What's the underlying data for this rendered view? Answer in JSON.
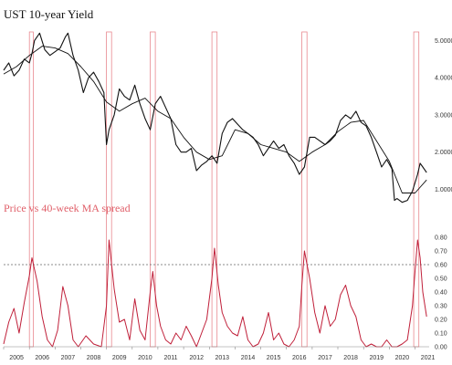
{
  "chart_data": [
    {
      "type": "line",
      "title": "UST 10-year Yield",
      "ylim": [
        0.2,
        5.6
      ],
      "yticks": [
        "1.0000",
        "2.0000",
        "3.0000",
        "4.0000",
        "5.0000"
      ],
      "ytick_values": [
        1,
        2,
        3,
        4,
        5
      ],
      "x_tick_labels": [
        "2005",
        "2006",
        "2007",
        "2008",
        "2009",
        "2010",
        "2011",
        "2012",
        "2013",
        "2014",
        "2015",
        "2016",
        "2017",
        "2018",
        "2019",
        "2020",
        "2021"
      ],
      "series": [
        {
          "color": "#111111",
          "x": [
            2005.0,
            2005.2,
            2005.4,
            2005.6,
            2005.8,
            2006.0,
            2006.1,
            2006.2,
            2006.4,
            2006.6,
            2006.8,
            2007.0,
            2007.2,
            2007.4,
            2007.5,
            2007.7,
            2007.9,
            2008.1,
            2008.3,
            2008.5,
            2008.7,
            2008.9,
            2009.0,
            2009.1,
            2009.3,
            2009.5,
            2009.7,
            2009.9,
            2010.1,
            2010.3,
            2010.5,
            2010.7,
            2010.9,
            2011.0,
            2011.1,
            2011.3,
            2011.5,
            2011.7,
            2011.9,
            2012.1,
            2012.3,
            2012.5,
            2012.7,
            2012.9,
            2013.1,
            2013.3,
            2013.5,
            2013.7,
            2013.9,
            2014.1,
            2014.3,
            2014.5,
            2014.7,
            2014.9,
            2015.1,
            2015.3,
            2015.5,
            2015.7,
            2015.9,
            2016.1,
            2016.3,
            2016.5,
            2016.7,
            2016.9,
            2017.1,
            2017.3,
            2017.5,
            2017.7,
            2017.9,
            2018.1,
            2018.3,
            2018.5,
            2018.7,
            2018.9,
            2019.1,
            2019.3,
            2019.5,
            2019.7,
            2019.9,
            2020.1,
            2020.2,
            2020.3,
            2020.5,
            2020.7,
            2020.9,
            2021.1,
            2021.2,
            2021.3,
            2021.45
          ],
          "values": [
            4.2,
            4.4,
            4.05,
            4.2,
            4.5,
            4.4,
            4.65,
            5.0,
            5.2,
            4.75,
            4.6,
            4.7,
            4.8,
            5.1,
            5.2,
            4.6,
            4.2,
            3.6,
            4.0,
            4.15,
            3.9,
            3.6,
            2.2,
            2.6,
            3.0,
            3.7,
            3.5,
            3.4,
            3.8,
            3.3,
            2.9,
            2.6,
            3.3,
            3.4,
            3.5,
            3.2,
            2.9,
            2.2,
            2.0,
            2.0,
            2.1,
            1.5,
            1.65,
            1.75,
            1.9,
            1.7,
            2.5,
            2.8,
            2.9,
            2.75,
            2.6,
            2.5,
            2.4,
            2.2,
            1.9,
            2.1,
            2.3,
            2.1,
            2.2,
            1.9,
            1.7,
            1.4,
            1.6,
            2.4,
            2.4,
            2.3,
            2.2,
            2.3,
            2.45,
            2.85,
            3.0,
            2.9,
            3.1,
            2.8,
            2.7,
            2.4,
            2.0,
            1.6,
            1.8,
            1.55,
            0.7,
            0.75,
            0.65,
            0.7,
            0.95,
            1.4,
            1.7,
            1.6,
            1.45
          ]
        },
        {
          "color": "#111111",
          "x": [
            2005.0,
            2005.5,
            2006.0,
            2006.5,
            2007.0,
            2007.5,
            2008.0,
            2008.5,
            2009.0,
            2009.5,
            2010.0,
            2010.5,
            2011.0,
            2011.5,
            2012.0,
            2012.5,
            2013.0,
            2013.5,
            2014.0,
            2014.5,
            2015.0,
            2015.5,
            2016.0,
            2016.5,
            2017.0,
            2017.5,
            2018.0,
            2018.5,
            2019.0,
            2019.5,
            2020.0,
            2020.5,
            2021.0,
            2021.45
          ],
          "values": [
            4.1,
            4.3,
            4.6,
            4.85,
            4.8,
            4.65,
            4.3,
            3.9,
            3.35,
            3.1,
            3.3,
            3.45,
            3.1,
            2.9,
            2.4,
            2.0,
            1.8,
            1.9,
            2.6,
            2.5,
            2.2,
            2.1,
            2.0,
            1.75,
            2.0,
            2.2,
            2.55,
            2.8,
            2.85,
            2.3,
            1.75,
            0.9,
            0.9,
            1.25
          ]
        }
      ],
      "highlight_periods": [
        [
          2006.0,
          2006.15
        ],
        [
          2009.0,
          2009.2
        ],
        [
          2010.7,
          2010.9
        ],
        [
          2013.1,
          2013.3
        ],
        [
          2016.6,
          2016.8
        ],
        [
          2020.95,
          2021.15
        ]
      ],
      "highlight_color": "#e0606a"
    },
    {
      "type": "line",
      "title": "Price vs 40-week MA spread",
      "ylim": [
        0,
        0.9
      ],
      "yticks": [
        "0.00",
        "0.10",
        "0.20",
        "0.30",
        "0.40",
        "0.50",
        "0.60",
        "0.70",
        "0.80"
      ],
      "ytick_values": [
        0,
        0.1,
        0.2,
        0.3,
        0.4,
        0.5,
        0.6,
        0.7,
        0.8
      ],
      "threshold": 0.6,
      "x_tick_labels": [
        "2005",
        "2006",
        "2007",
        "2008",
        "2009",
        "2010",
        "2011",
        "2012",
        "2013",
        "2014",
        "2015",
        "2016",
        "2017",
        "2018",
        "2019",
        "2020",
        "2021"
      ],
      "series": [
        {
          "color": "#c0203a",
          "x": [
            2005.0,
            2005.2,
            2005.4,
            2005.6,
            2005.8,
            2006.0,
            2006.1,
            2006.3,
            2006.5,
            2006.7,
            2006.9,
            2007.1,
            2007.3,
            2007.5,
            2007.7,
            2007.9,
            2008.2,
            2008.5,
            2008.8,
            2009.0,
            2009.1,
            2009.3,
            2009.5,
            2009.7,
            2009.9,
            2010.1,
            2010.3,
            2010.5,
            2010.7,
            2010.8,
            2010.95,
            2011.1,
            2011.3,
            2011.5,
            2011.7,
            2011.9,
            2012.1,
            2012.3,
            2012.5,
            2012.7,
            2012.9,
            2013.1,
            2013.2,
            2013.35,
            2013.5,
            2013.7,
            2013.9,
            2014.1,
            2014.3,
            2014.5,
            2014.7,
            2014.9,
            2015.1,
            2015.3,
            2015.5,
            2015.7,
            2015.9,
            2016.1,
            2016.3,
            2016.5,
            2016.6,
            2016.7,
            2016.9,
            2017.1,
            2017.3,
            2017.5,
            2017.7,
            2017.9,
            2018.1,
            2018.3,
            2018.5,
            2018.7,
            2018.9,
            2019.1,
            2019.3,
            2019.5,
            2019.7,
            2019.9,
            2020.1,
            2020.3,
            2020.5,
            2020.7,
            2020.9,
            2021.0,
            2021.1,
            2021.2,
            2021.3,
            2021.45
          ],
          "values": [
            0.02,
            0.18,
            0.28,
            0.1,
            0.32,
            0.52,
            0.65,
            0.48,
            0.22,
            0.05,
            0.0,
            0.12,
            0.44,
            0.3,
            0.05,
            0.0,
            0.08,
            0.02,
            0.0,
            0.3,
            0.78,
            0.42,
            0.18,
            0.2,
            0.05,
            0.35,
            0.12,
            0.05,
            0.4,
            0.55,
            0.3,
            0.15,
            0.05,
            0.02,
            0.1,
            0.05,
            0.15,
            0.08,
            0.0,
            0.1,
            0.2,
            0.5,
            0.72,
            0.45,
            0.25,
            0.15,
            0.1,
            0.08,
            0.22,
            0.05,
            0.0,
            0.02,
            0.1,
            0.25,
            0.05,
            0.1,
            0.02,
            0.0,
            0.05,
            0.15,
            0.45,
            0.7,
            0.5,
            0.25,
            0.1,
            0.3,
            0.15,
            0.2,
            0.38,
            0.45,
            0.3,
            0.22,
            0.05,
            0.0,
            0.02,
            0.0,
            0.0,
            0.05,
            0.0,
            0.0,
            0.02,
            0.05,
            0.3,
            0.55,
            0.78,
            0.65,
            0.4,
            0.22
          ]
        }
      ]
    }
  ]
}
